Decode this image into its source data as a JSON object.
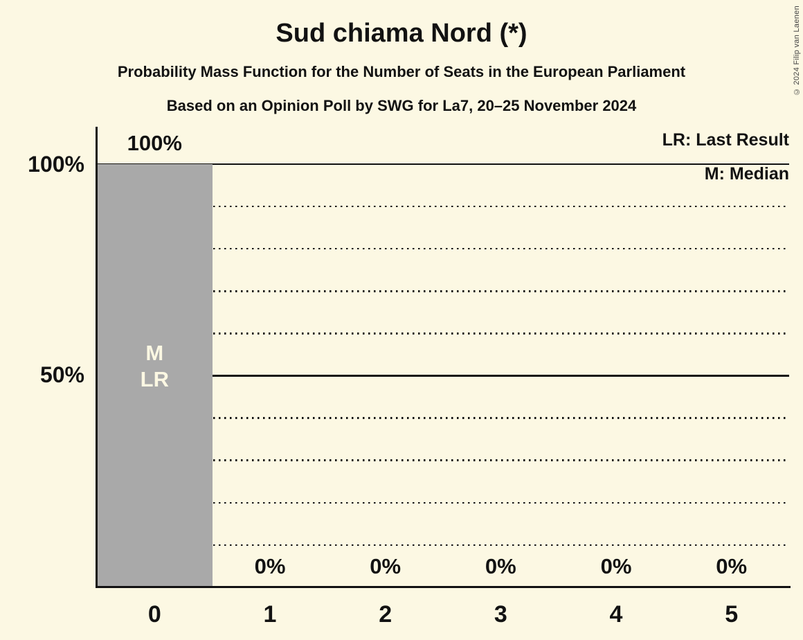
{
  "copyright": "© 2024 Filip van Laenen",
  "colors": {
    "background": "#FCF8E3",
    "bar": "#A9A9A9",
    "text": "#121212",
    "bar_annotation_text": "#FCF8E3"
  },
  "legend": {
    "last_result": "LR: Last Result",
    "median": "M: Median"
  },
  "chart_data": {
    "type": "bar",
    "title": "Sud chiama Nord (*)",
    "subtitle": "Probability Mass Function for the Number of Seats in the European Parliament",
    "source_line": "Based on an Opinion Poll by SWG for La7, 20–25 November 2024",
    "categories": [
      "0",
      "1",
      "2",
      "3",
      "4",
      "5"
    ],
    "values": [
      100,
      0,
      0,
      0,
      0,
      0
    ],
    "value_labels": [
      "100%",
      "0%",
      "0%",
      "0%",
      "0%",
      "0%"
    ],
    "xlabel": "",
    "ylabel": "",
    "ylim": [
      0,
      100
    ],
    "ytick_labels": [
      "100%",
      "50%"
    ],
    "ytick_percents": [
      100,
      50
    ],
    "solid_gridlines_percent": [
      100,
      50
    ],
    "dotted_gridlines_percent": [
      90,
      80,
      70,
      60,
      40,
      30,
      20,
      10
    ],
    "grid": "horizontal",
    "legend_position": "top-right",
    "legend_entries": [
      "LR: Last Result",
      "M: Median"
    ],
    "bar_annotations": [
      {
        "bar": 0,
        "lines": [
          "M",
          "LR"
        ]
      }
    ]
  }
}
